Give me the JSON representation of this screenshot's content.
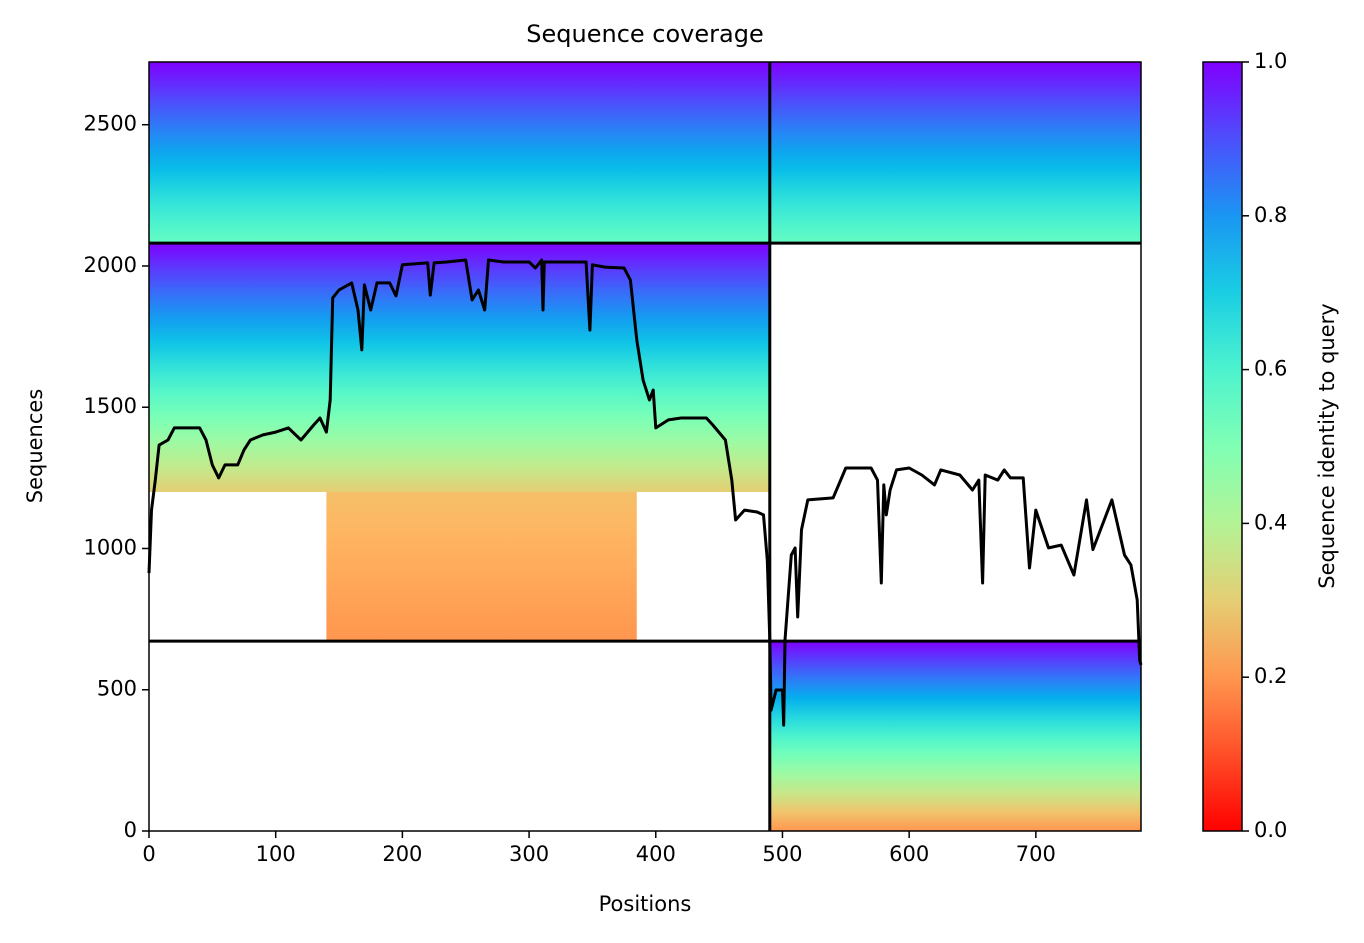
{
  "chart_data": {
    "type": "coverage",
    "title": "Sequence coverage",
    "xlabel": "Positions",
    "ylabel": "Sequences",
    "xlim": [
      0,
      783
    ],
    "ylim": [
      0,
      2722
    ],
    "xticks": [
      0,
      100,
      200,
      300,
      400,
      500,
      600,
      700
    ],
    "yticks": [
      0,
      500,
      1000,
      1500,
      2000,
      2500
    ],
    "blocks": [
      {
        "x": [
          0,
          490
        ],
        "y": [
          2081,
          2722
        ],
        "identity": [
          0.55,
          1.0
        ]
      },
      {
        "x": [
          490,
          783
        ],
        "y": [
          2081,
          2722
        ],
        "identity": [
          0.55,
          1.0
        ]
      },
      {
        "x": [
          0,
          490
        ],
        "y": [
          1200,
          2081
        ],
        "identity": [
          0.3,
          1.0
        ]
      },
      {
        "x": [
          140,
          385
        ],
        "y": [
          672,
          1200
        ],
        "identity": [
          0.2,
          0.27
        ]
      },
      {
        "x": [
          490,
          783
        ],
        "y": [
          0,
          672
        ],
        "identity": [
          0.2,
          1.0
        ]
      }
    ],
    "dividers": {
      "x": [
        490
      ],
      "y": [
        672,
        2081
      ]
    },
    "series": [
      {
        "color": "#000000",
        "x": [
          0,
          2,
          5,
          8,
          15,
          20,
          40,
          45,
          50,
          55,
          60,
          70,
          75,
          80,
          90,
          100,
          110,
          120,
          130,
          135,
          140,
          143,
          145,
          150,
          160,
          165,
          168,
          170,
          175,
          180,
          190,
          195,
          200,
          220,
          222,
          225,
          235,
          250,
          255,
          260,
          265,
          268,
          280,
          300,
          305,
          310,
          311,
          312,
          345,
          348,
          350,
          360,
          375,
          380,
          385,
          390,
          395,
          398,
          400,
          410,
          420,
          440,
          445,
          455,
          460,
          463,
          470,
          480,
          485,
          488,
          490,
          491,
          495,
          500,
          501,
          502,
          507,
          510,
          512,
          515,
          520,
          540,
          550,
          570,
          575,
          578,
          580,
          582,
          585,
          590,
          600,
          610,
          620,
          625,
          640,
          650,
          655,
          658,
          660,
          670,
          675,
          680,
          690,
          695,
          700,
          710,
          720,
          730,
          740,
          745,
          760,
          770,
          775,
          780,
          782,
          783
        ],
        "values": [
          913,
          1136,
          1242,
          1366,
          1384,
          1427,
          1427,
          1384,
          1296,
          1250,
          1296,
          1296,
          1349,
          1384,
          1402,
          1412,
          1427,
          1384,
          1437,
          1462,
          1412,
          1526,
          1887,
          1915,
          1940,
          1844,
          1703,
          1933,
          1844,
          1940,
          1940,
          1894,
          2004,
          2011,
          1897,
          2011,
          2014,
          2021,
          1880,
          1915,
          1844,
          2021,
          2014,
          2014,
          1993,
          2021,
          1844,
          2014,
          2014,
          1773,
          2004,
          1996,
          1993,
          1950,
          1738,
          1596,
          1526,
          1561,
          1427,
          1455,
          1462,
          1462,
          1437,
          1384,
          1242,
          1101,
          1136,
          1129,
          1119,
          959,
          676,
          428,
          499,
          499,
          375,
          676,
          977,
          1002,
          758,
          1066,
          1172,
          1179,
          1285,
          1285,
          1242,
          878,
          1225,
          1119,
          1207,
          1278,
          1285,
          1260,
          1225,
          1278,
          1260,
          1207,
          1242,
          878,
          1260,
          1242,
          1278,
          1250,
          1250,
          931,
          1136,
          1002,
          1012,
          906,
          1172,
          996,
          1172,
          977,
          942,
          818,
          605,
          588
        ]
      }
    ],
    "colorbar": {
      "label": "Sequence identity to query",
      "lim": [
        0,
        1
      ],
      "ticks": [
        {
          "value": 0,
          "label": "0.0"
        },
        {
          "value": 0.2,
          "label": "0.2"
        },
        {
          "value": 0.4,
          "label": "0.4"
        },
        {
          "value": 0.6,
          "label": "0.6"
        },
        {
          "value": 0.8,
          "label": "0.8"
        },
        {
          "value": 1,
          "label": "1.0"
        }
      ]
    }
  }
}
